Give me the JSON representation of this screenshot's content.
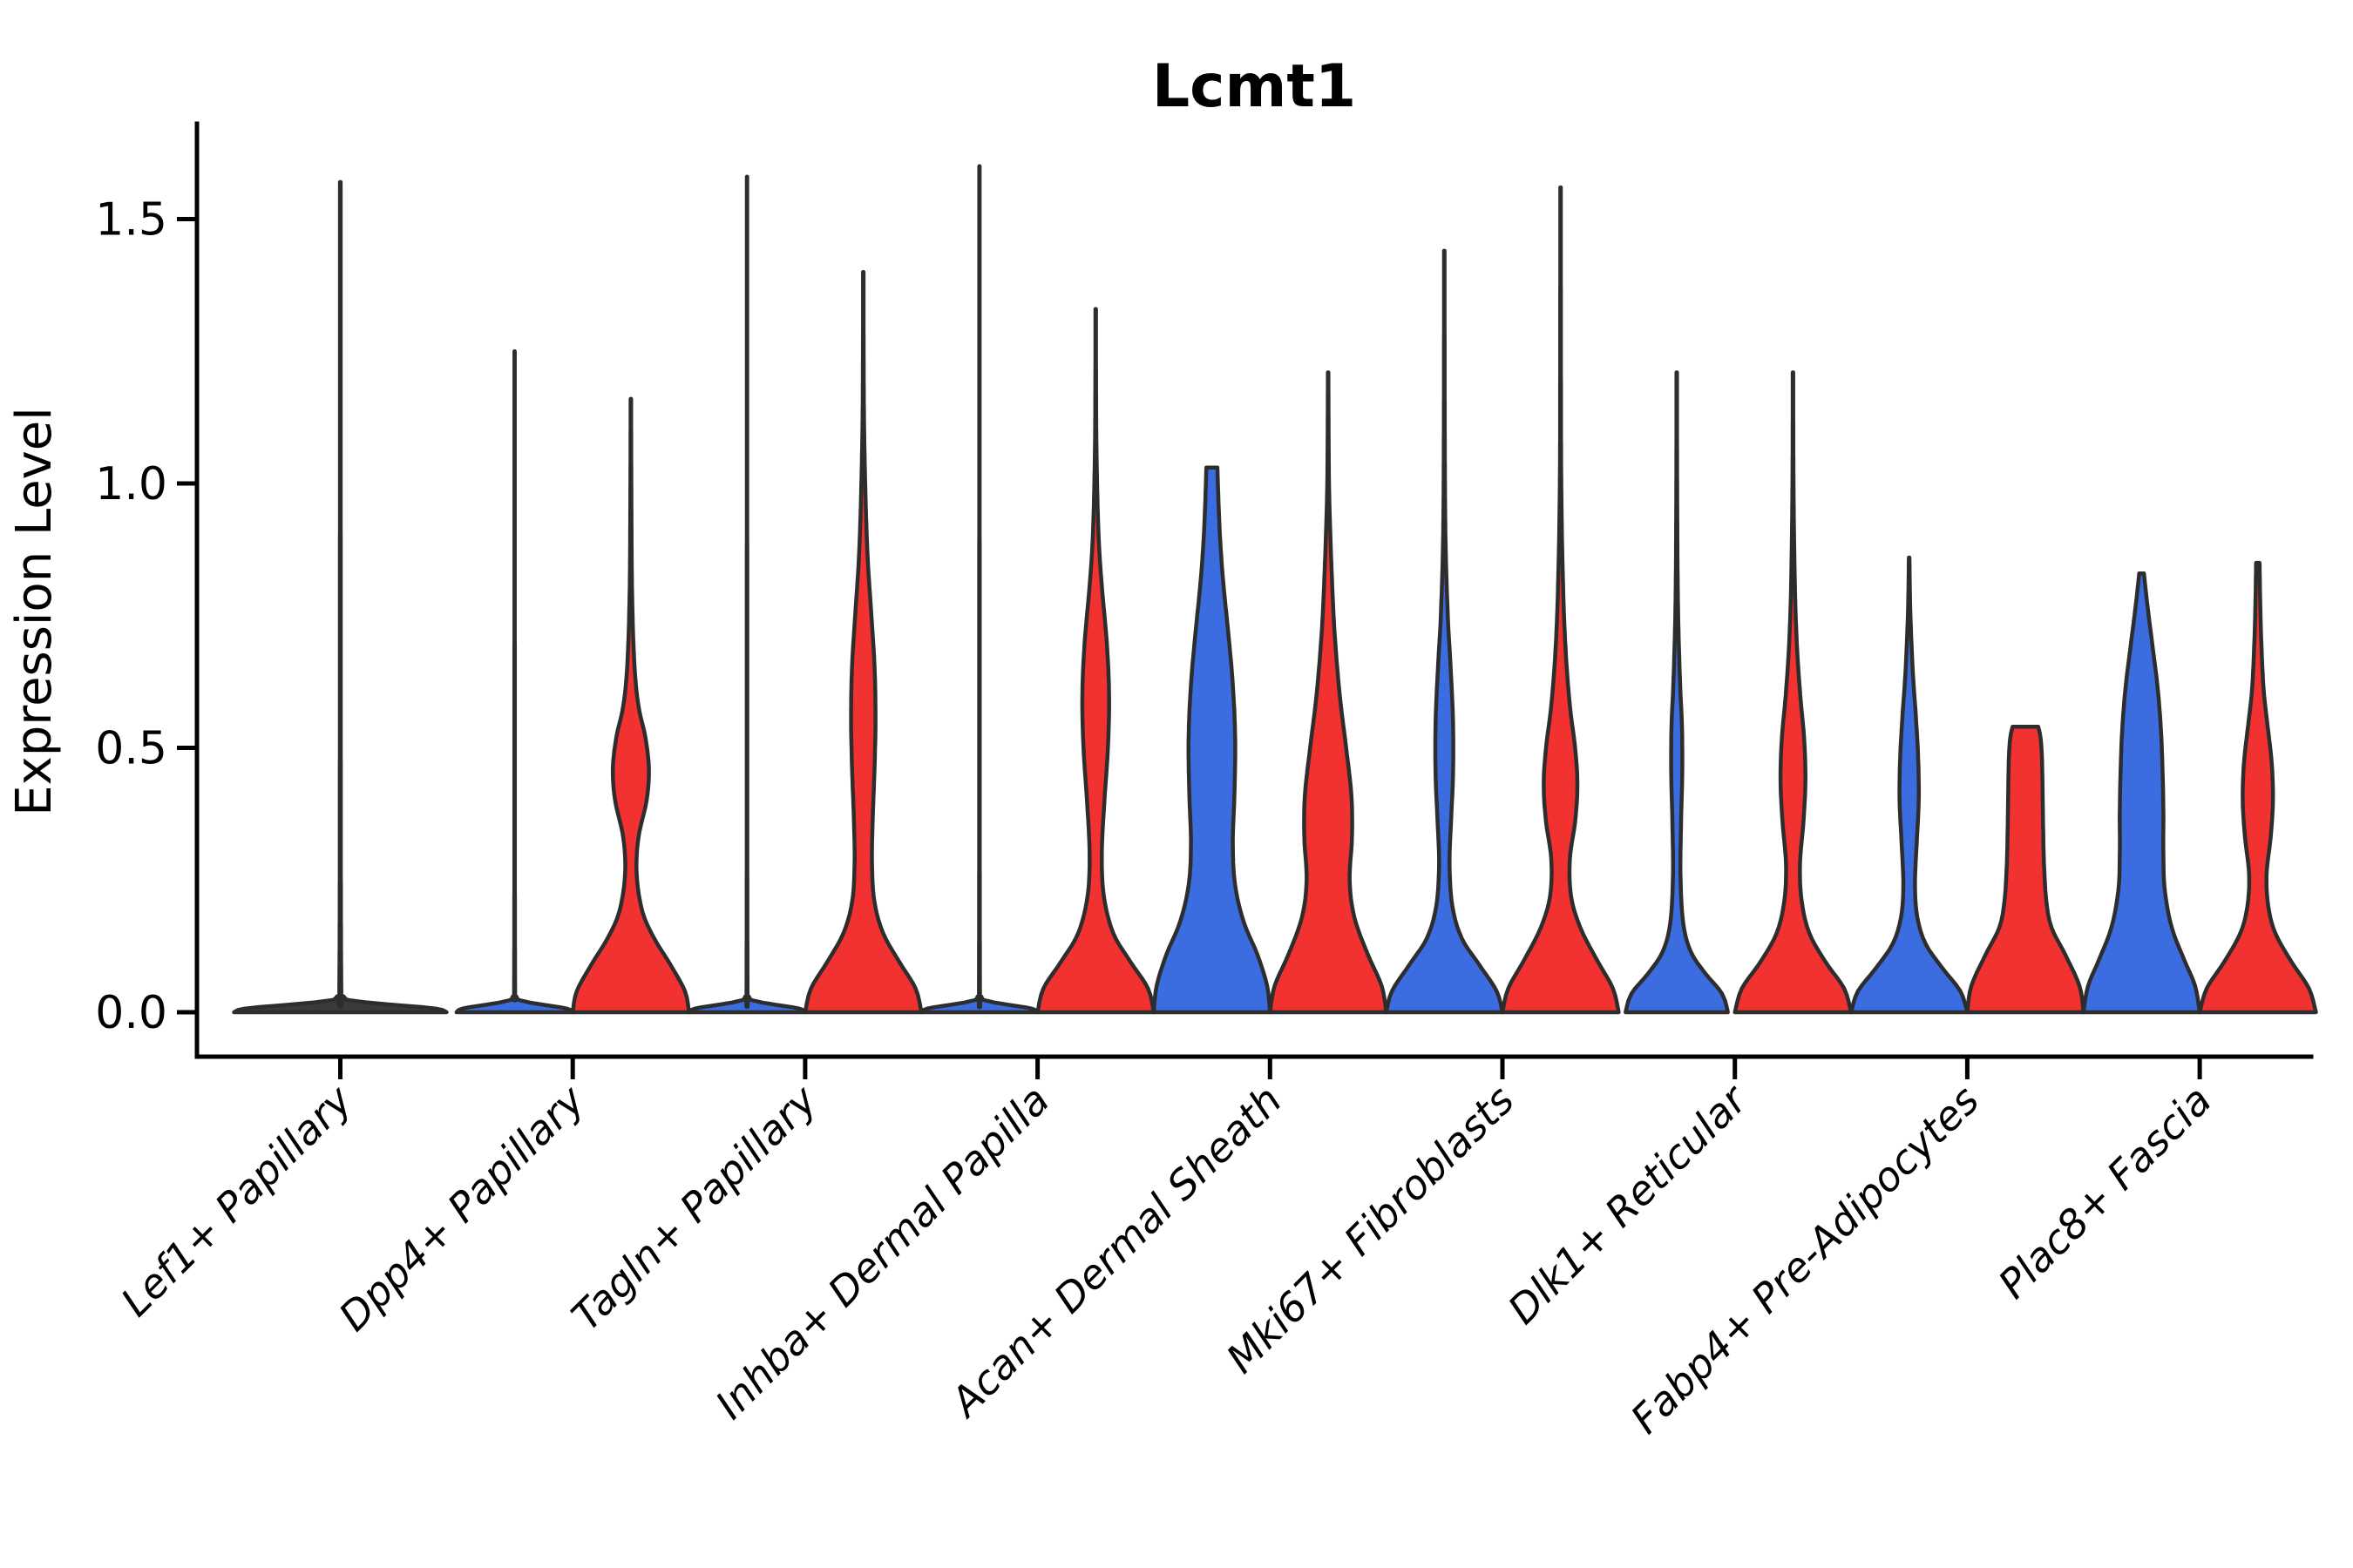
{
  "title": "Lcmt1",
  "y_axis": {
    "label": "Expression Level",
    "ticks": [
      "1.5",
      "1.0",
      "0.5",
      "0.0"
    ]
  },
  "chart_data": {
    "type": "violin",
    "title": "Lcmt1",
    "xlabel": "",
    "ylabel": "Expression Level",
    "ylim": [
      0,
      1.68
    ],
    "yticks": [
      0.0,
      0.5,
      1.0,
      1.5
    ],
    "ytick_labels": [
      "0.0",
      "0.5",
      "1.0",
      "1.5"
    ],
    "grid": false,
    "legend": "none",
    "categories": [
      "Lef1+ Papillary",
      "Dpp4+ Papillary",
      "Tagln+ Papillary",
      "Inhba+ Dermal Papilla",
      "Acan+ Dermal Sheath",
      "Mki67+ Fibroblasts",
      "Dlk1+ Reticular",
      "Fabp4+ Pre-Adipocytes",
      "Plac8+ Fascia"
    ],
    "groups": [
      {
        "name": "blue",
        "color": "#3B6CE0"
      },
      {
        "name": "red",
        "color": "#F23131"
      }
    ],
    "outline_color": "#2D2D2D",
    "flat_fill_color": "#3A3A3A",
    "violins": [
      {
        "category": 0,
        "group": "single",
        "kind": "flat",
        "width": "full",
        "max": 1.57,
        "color": "#3A3A3A"
      },
      {
        "category": 1,
        "group": "blue",
        "kind": "flat",
        "width": "half",
        "side": "left",
        "max": 1.25,
        "color": "#3B6CE0"
      },
      {
        "category": 1,
        "group": "red",
        "kind": "body",
        "width": "half",
        "side": "right",
        "max": 1.16,
        "color": "#F23131",
        "profile": [
          [
            0,
            1
          ],
          [
            0.04,
            0.93
          ],
          [
            0.09,
            0.68
          ],
          [
            0.14,
            0.4
          ],
          [
            0.19,
            0.2
          ],
          [
            0.26,
            0.1
          ],
          [
            0.33,
            0.13
          ],
          [
            0.4,
            0.27
          ],
          [
            0.46,
            0.31
          ],
          [
            0.52,
            0.25
          ],
          [
            0.58,
            0.13
          ],
          [
            0.66,
            0.06
          ],
          [
            0.8,
            0.02
          ],
          [
            1.0,
            0.008
          ],
          [
            1.16,
            0.004
          ]
        ]
      },
      {
        "category": 2,
        "group": "blue",
        "kind": "flat",
        "width": "half",
        "side": "left",
        "max": 1.58,
        "color": "#3B6CE0"
      },
      {
        "category": 2,
        "group": "red",
        "kind": "body",
        "width": "half",
        "side": "right",
        "max": 1.4,
        "color": "#F23131",
        "profile": [
          [
            0,
            1
          ],
          [
            0.045,
            0.9
          ],
          [
            0.095,
            0.62
          ],
          [
            0.15,
            0.34
          ],
          [
            0.21,
            0.19
          ],
          [
            0.28,
            0.15
          ],
          [
            0.36,
            0.16
          ],
          [
            0.45,
            0.19
          ],
          [
            0.55,
            0.21
          ],
          [
            0.65,
            0.195
          ],
          [
            0.75,
            0.14
          ],
          [
            0.85,
            0.08
          ],
          [
            0.95,
            0.045
          ],
          [
            1.1,
            0.015
          ],
          [
            1.25,
            0.006
          ],
          [
            1.4,
            0.004
          ]
        ]
      },
      {
        "category": 3,
        "group": "blue",
        "kind": "flat",
        "width": "half",
        "side": "left",
        "max": 1.6,
        "color": "#3B6CE0"
      },
      {
        "category": 3,
        "group": "red",
        "kind": "body",
        "width": "half",
        "side": "right",
        "max": 1.33,
        "color": "#F23131",
        "profile": [
          [
            0,
            1
          ],
          [
            0.045,
            0.9
          ],
          [
            0.095,
            0.6
          ],
          [
            0.15,
            0.3
          ],
          [
            0.22,
            0.14
          ],
          [
            0.3,
            0.105
          ],
          [
            0.4,
            0.15
          ],
          [
            0.5,
            0.21
          ],
          [
            0.6,
            0.23
          ],
          [
            0.7,
            0.19
          ],
          [
            0.8,
            0.11
          ],
          [
            0.9,
            0.05
          ],
          [
            1.05,
            0.015
          ],
          [
            1.2,
            0.006
          ],
          [
            1.33,
            0.004
          ]
        ]
      },
      {
        "category": 4,
        "group": "blue",
        "kind": "body",
        "width": "half",
        "side": "left",
        "max": 1.03,
        "color": "#3B6CE0",
        "profile": [
          [
            0,
            1
          ],
          [
            0.05,
            0.95
          ],
          [
            0.11,
            0.78
          ],
          [
            0.17,
            0.55
          ],
          [
            0.24,
            0.4
          ],
          [
            0.32,
            0.36
          ],
          [
            0.42,
            0.39
          ],
          [
            0.52,
            0.4
          ],
          [
            0.62,
            0.36
          ],
          [
            0.72,
            0.28
          ],
          [
            0.82,
            0.19
          ],
          [
            0.92,
            0.13
          ],
          [
            1.03,
            0.095
          ]
        ]
      },
      {
        "category": 4,
        "group": "red",
        "kind": "body",
        "width": "half",
        "side": "right",
        "max": 1.21,
        "color": "#F23131",
        "profile": [
          [
            0,
            1
          ],
          [
            0.05,
            0.92
          ],
          [
            0.11,
            0.68
          ],
          [
            0.18,
            0.45
          ],
          [
            0.25,
            0.37
          ],
          [
            0.33,
            0.41
          ],
          [
            0.41,
            0.4
          ],
          [
            0.5,
            0.31
          ],
          [
            0.6,
            0.2
          ],
          [
            0.72,
            0.11
          ],
          [
            0.85,
            0.055
          ],
          [
            1.0,
            0.015
          ],
          [
            1.21,
            0.004
          ]
        ]
      },
      {
        "category": 5,
        "group": "blue",
        "kind": "body",
        "width": "half",
        "side": "left",
        "max": 1.44,
        "color": "#3B6CE0",
        "profile": [
          [
            0,
            1
          ],
          [
            0.04,
            0.9
          ],
          [
            0.09,
            0.6
          ],
          [
            0.14,
            0.3
          ],
          [
            0.2,
            0.14
          ],
          [
            0.28,
            0.09
          ],
          [
            0.37,
            0.12
          ],
          [
            0.45,
            0.15
          ],
          [
            0.55,
            0.15
          ],
          [
            0.65,
            0.11
          ],
          [
            0.75,
            0.06
          ],
          [
            0.9,
            0.02
          ],
          [
            1.1,
            0.008
          ],
          [
            1.44,
            0.004
          ]
        ]
      },
      {
        "category": 5,
        "group": "red",
        "kind": "body",
        "width": "half",
        "side": "right",
        "max": 1.56,
        "color": "#F23131",
        "profile": [
          [
            0,
            1
          ],
          [
            0.045,
            0.9
          ],
          [
            0.1,
            0.62
          ],
          [
            0.16,
            0.34
          ],
          [
            0.22,
            0.18
          ],
          [
            0.29,
            0.16
          ],
          [
            0.36,
            0.25
          ],
          [
            0.43,
            0.29
          ],
          [
            0.5,
            0.25
          ],
          [
            0.58,
            0.16
          ],
          [
            0.68,
            0.09
          ],
          [
            0.8,
            0.045
          ],
          [
            1.0,
            0.012
          ],
          [
            1.3,
            0.006
          ],
          [
            1.56,
            0.004
          ]
        ]
      },
      {
        "category": 6,
        "group": "blue",
        "kind": "body",
        "width": "half",
        "side": "left",
        "max": 1.21,
        "color": "#3B6CE0",
        "profile": [
          [
            0,
            0.88
          ],
          [
            0.035,
            0.78
          ],
          [
            0.075,
            0.48
          ],
          [
            0.115,
            0.24
          ],
          [
            0.17,
            0.11
          ],
          [
            0.26,
            0.065
          ],
          [
            0.36,
            0.075
          ],
          [
            0.45,
            0.095
          ],
          [
            0.54,
            0.09
          ],
          [
            0.63,
            0.055
          ],
          [
            0.78,
            0.02
          ],
          [
            1.0,
            0.007
          ],
          [
            1.21,
            0.004
          ]
        ]
      },
      {
        "category": 6,
        "group": "red",
        "kind": "body",
        "width": "half",
        "side": "right",
        "max": 1.21,
        "color": "#F23131",
        "profile": [
          [
            0,
            1
          ],
          [
            0.045,
            0.88
          ],
          [
            0.095,
            0.56
          ],
          [
            0.15,
            0.28
          ],
          [
            0.21,
            0.15
          ],
          [
            0.28,
            0.12
          ],
          [
            0.36,
            0.18
          ],
          [
            0.44,
            0.215
          ],
          [
            0.52,
            0.19
          ],
          [
            0.6,
            0.125
          ],
          [
            0.7,
            0.065
          ],
          [
            0.82,
            0.03
          ],
          [
            1.0,
            0.009
          ],
          [
            1.21,
            0.004
          ]
        ]
      },
      {
        "category": 7,
        "group": "blue",
        "kind": "body",
        "width": "half",
        "side": "left",
        "max": 0.86,
        "color": "#3B6CE0",
        "profile": [
          [
            0,
            1
          ],
          [
            0.04,
            0.88
          ],
          [
            0.085,
            0.56
          ],
          [
            0.13,
            0.28
          ],
          [
            0.18,
            0.14
          ],
          [
            0.24,
            0.1
          ],
          [
            0.32,
            0.13
          ],
          [
            0.4,
            0.165
          ],
          [
            0.48,
            0.155
          ],
          [
            0.56,
            0.115
          ],
          [
            0.65,
            0.06
          ],
          [
            0.76,
            0.02
          ],
          [
            0.86,
            0.005
          ]
        ]
      },
      {
        "category": 7,
        "group": "red",
        "kind": "body",
        "width": "half",
        "side": "right",
        "max": 0.54,
        "color": "#F23131",
        "profile": [
          [
            0,
            1
          ],
          [
            0.05,
            0.93
          ],
          [
            0.11,
            0.68
          ],
          [
            0.16,
            0.45
          ],
          [
            0.21,
            0.36
          ],
          [
            0.28,
            0.32
          ],
          [
            0.35,
            0.305
          ],
          [
            0.42,
            0.295
          ],
          [
            0.48,
            0.285
          ],
          [
            0.52,
            0.26
          ],
          [
            0.54,
            0.22
          ]
        ]
      },
      {
        "category": 8,
        "group": "blue",
        "kind": "body",
        "width": "half",
        "side": "left",
        "max": 0.83,
        "color": "#3B6CE0",
        "profile": [
          [
            0,
            1
          ],
          [
            0.05,
            0.92
          ],
          [
            0.1,
            0.73
          ],
          [
            0.16,
            0.52
          ],
          [
            0.23,
            0.4
          ],
          [
            0.3,
            0.375
          ],
          [
            0.38,
            0.375
          ],
          [
            0.46,
            0.36
          ],
          [
            0.54,
            0.33
          ],
          [
            0.62,
            0.27
          ],
          [
            0.7,
            0.18
          ],
          [
            0.77,
            0.1
          ],
          [
            0.83,
            0.04
          ]
        ]
      },
      {
        "category": 8,
        "group": "red",
        "kind": "body",
        "width": "half",
        "side": "right",
        "max": 0.85,
        "color": "#F23131",
        "profile": [
          [
            0,
            1
          ],
          [
            0.045,
            0.88
          ],
          [
            0.095,
            0.58
          ],
          [
            0.15,
            0.3
          ],
          [
            0.2,
            0.18
          ],
          [
            0.26,
            0.15
          ],
          [
            0.33,
            0.22
          ],
          [
            0.4,
            0.26
          ],
          [
            0.47,
            0.24
          ],
          [
            0.54,
            0.17
          ],
          [
            0.61,
            0.1
          ],
          [
            0.7,
            0.06
          ],
          [
            0.78,
            0.04
          ],
          [
            0.85,
            0.03
          ]
        ]
      }
    ]
  }
}
